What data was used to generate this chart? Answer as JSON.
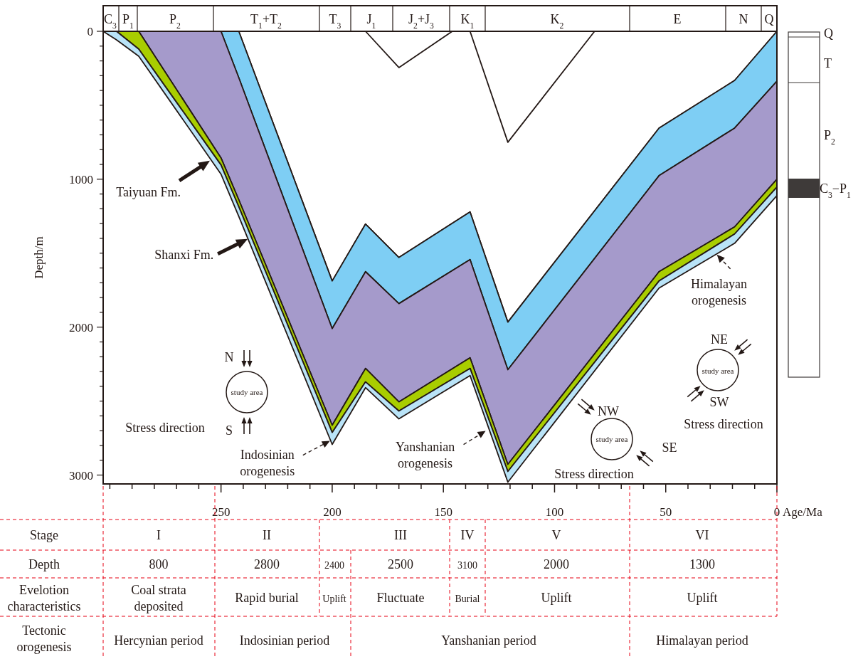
{
  "chart_data": {
    "type": "area",
    "stacked": true,
    "xlabel": "Age/Ma",
    "ylabel": "Depth/m",
    "x": [
      303,
      297,
      287,
      250,
      242,
      200,
      185,
      170,
      138,
      121,
      53,
      19,
      0
    ],
    "series": [
      {
        "color": "#ffffff",
        "values": [
          0,
          0,
          0,
          0,
          0,
          1688,
          1303,
          1529,
          1221,
          1966,
          654,
          332,
          0
        ]
      },
      {
        "color": "#7ecef4",
        "values": [
          0,
          0,
          0,
          0,
          314,
          322,
          322,
          312,
          322,
          322,
          322,
          322,
          337
        ]
      },
      {
        "color": "#a59acb",
        "values": [
          0,
          0,
          0,
          856,
          825,
          653,
          654,
          664,
          664,
          640,
          649,
          668,
          663
        ]
      },
      {
        "color": "#a9cd00",
        "values": [
          0,
          0,
          120,
          48,
          48,
          49,
          91,
          62,
          72,
          48,
          63,
          48,
          53
        ]
      },
      {
        "color": "#b9e3f7",
        "values": [
          0,
          58,
          48,
          62,
          65,
          81,
          39,
          53,
          48,
          72,
          48,
          63,
          58
        ]
      },
      {
        "type": "line",
        "color": "#231815",
        "x": [
          185,
          170,
          146
        ],
        "values": [
          0,
          245,
          0
        ]
      },
      {
        "type": "line",
        "color": "#231815",
        "x": [
          138,
          121,
          82
        ],
        "values": [
          0,
          750,
          0
        ]
      }
    ],
    "xlim": [
      303,
      0
    ],
    "xticks": [
      {
        "value": 300,
        "label": null
      },
      {
        "value": 290,
        "label": null
      },
      {
        "value": 280,
        "label": null
      },
      {
        "value": 270,
        "label": null
      },
      {
        "value": 260,
        "label": null
      },
      250,
      {
        "value": 240,
        "label": null
      },
      {
        "value": 230,
        "label": null
      },
      {
        "value": 220,
        "label": null
      },
      {
        "value": 210,
        "label": null
      },
      200,
      {
        "value": 190,
        "label": null
      },
      {
        "value": 180,
        "label": null
      },
      {
        "value": 170,
        "label": null
      },
      {
        "value": 160,
        "label": null
      },
      150,
      {
        "value": 140,
        "label": null
      },
      {
        "value": 130,
        "label": null
      },
      {
        "value": 120,
        "label": null
      },
      {
        "value": 110,
        "label": null
      },
      100,
      {
        "value": 90,
        "label": null
      },
      {
        "value": 80,
        "label": null
      },
      {
        "value": 70,
        "label": null
      },
      {
        "value": 60,
        "label": null
      },
      50,
      {
        "value": 40,
        "label": null
      },
      {
        "value": 30,
        "label": null
      },
      {
        "value": 20,
        "label": null
      },
      {
        "value": 10,
        "label": null
      },
      0
    ],
    "ylim": [
      3060,
      0
    ],
    "yticks": [
      0,
      {
        "value": 100,
        "label": null
      },
      {
        "value": 200,
        "label": null
      },
      {
        "value": 300,
        "label": null
      },
      {
        "value": 400,
        "label": null
      },
      {
        "value": 500,
        "label": null
      },
      {
        "value": 600,
        "label": null
      },
      {
        "value": 700,
        "label": null
      },
      {
        "value": 800,
        "label": null
      },
      {
        "value": 900,
        "label": null
      },
      1000,
      {
        "value": 1100,
        "label": null
      },
      {
        "value": 1200,
        "label": null
      },
      {
        "value": 1300,
        "label": null
      },
      {
        "value": 1400,
        "label": null
      },
      {
        "value": 1500,
        "label": null
      },
      {
        "value": 1600,
        "label": null
      },
      {
        "value": 1700,
        "label": null
      },
      {
        "value": 1800,
        "label": null
      },
      {
        "value": 1900,
        "label": null
      },
      2000,
      {
        "value": 2100,
        "label": null
      },
      {
        "value": 2200,
        "label": null
      },
      {
        "value": 2300,
        "label": null
      },
      {
        "value": 2400,
        "label": null
      },
      {
        "value": 2500,
        "label": null
      },
      {
        "value": 2600,
        "label": null
      },
      {
        "value": 2700,
        "label": null
      },
      {
        "value": 2800,
        "label": null
      },
      {
        "value": 2900,
        "label": null
      },
      3000
    ],
    "tick_labels": "xy",
    "annotations": [
      {
        "text": "Taiyuan Fm.",
        "x": 255,
        "y": 875
      },
      {
        "text": "Shanxi Fm.",
        "x": 238,
        "y": 1404
      },
      {
        "text": "Indosinian\norogenesis",
        "x": 201,
        "y": 2769
      },
      {
        "text": "Yanshanian\norogenesis",
        "x": 131,
        "y": 2702
      },
      {
        "text": "Himalayan\norogenesis",
        "x": 27,
        "y": 1510
      },
      "Stress direction",
      "Stress direction",
      "Stress direction",
      "study area",
      "study area",
      "study area",
      "N",
      "S",
      "NW",
      "SE",
      "NE",
      "SW",
      "Q",
      "T",
      "P$_{2}$",
      "C$_{3}$−P$_{1}$",
      "Stage",
      "I",
      "II",
      "III",
      "IV",
      "V",
      "VI",
      "Depth",
      "800",
      "2800",
      "2400",
      "2500",
      "3100",
      "2000",
      "1300",
      "Evelotion\ncharacteristics",
      "Coal strata\ndeposited",
      "Rapid burial",
      "Uplift",
      "Fluctuate",
      "Burial",
      "Uplift",
      "Uplift",
      "Tectonic\norogenesis",
      "Hercynian period",
      "Indosinian period",
      "Yanshanian period",
      "Himalayan period",
      "C$_{3}$",
      "P$_{1}$",
      "P$_{2}$",
      "T$_{1}$+T$_{2}$",
      "T$_{3}$",
      "J$_{1}$",
      "J$_{2}$+J$_{3}$",
      "K$_{1}$",
      "K$_{2}$",
      "E",
      "N",
      "Q"
    ]
  }
}
